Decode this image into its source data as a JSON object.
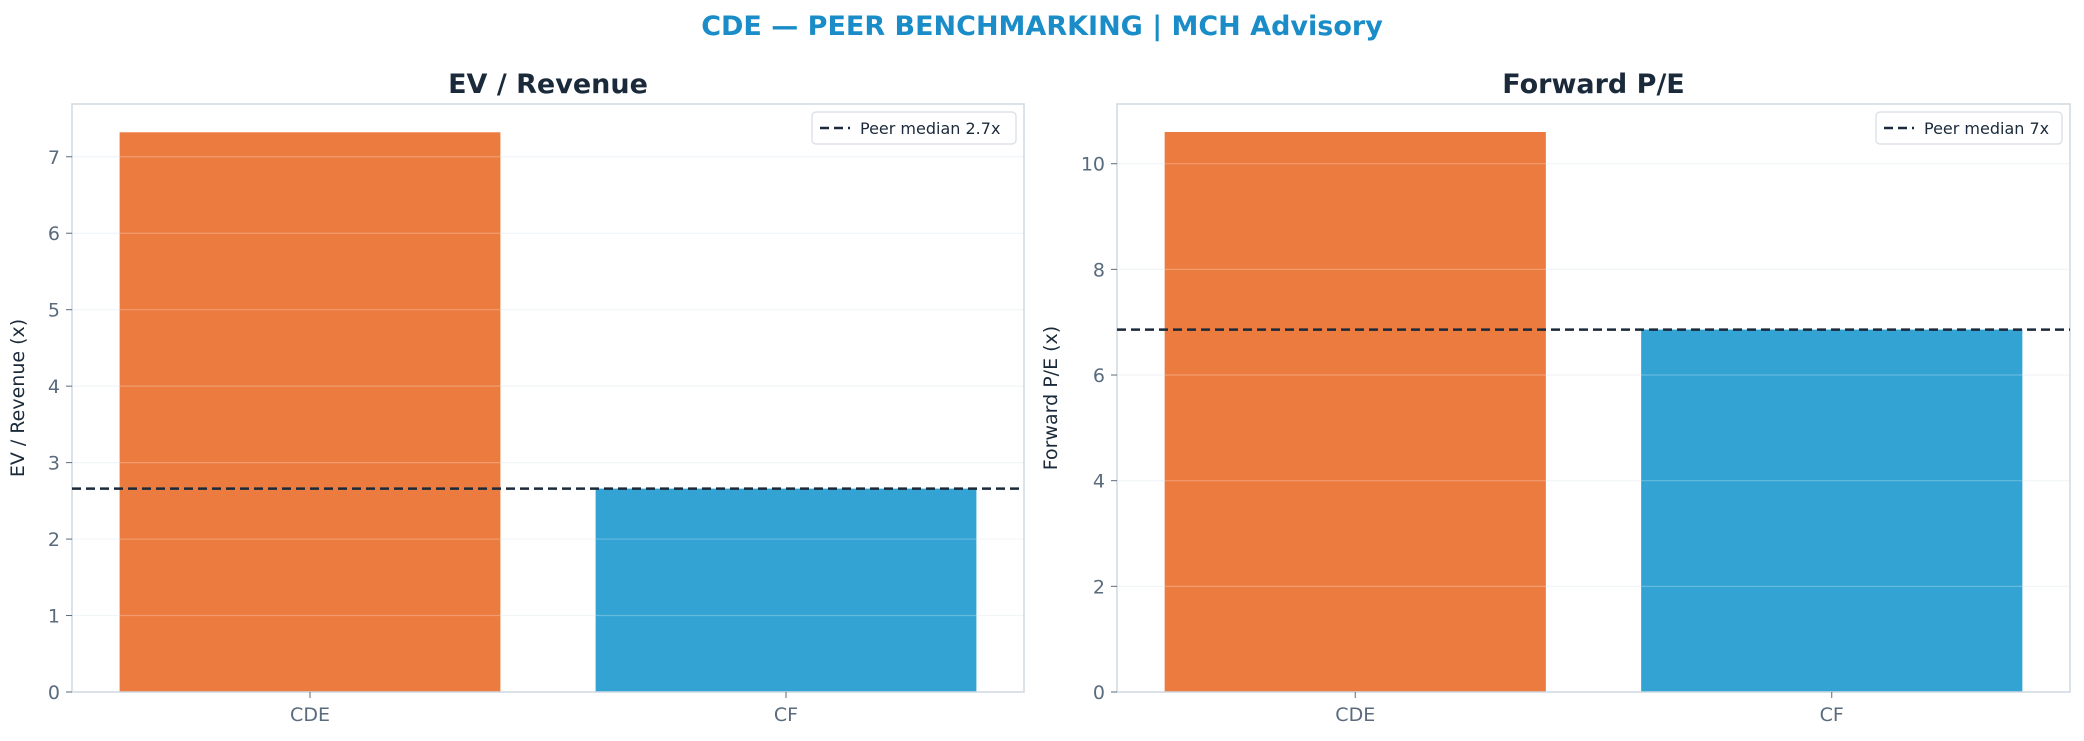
{
  "title": "CDE — PEER BENCHMARKING | MCH Advisory",
  "colors": {
    "title": "#1a8cc8",
    "highlight_bar": "#ec7b3f",
    "peer_bar": "#33a3d3",
    "median_line": "#1b2a3a",
    "axis": "#cfd8e0",
    "grid": "#eef2f5"
  },
  "chart_data": [
    {
      "type": "bar",
      "title": "EV / Revenue",
      "ylabel": "EV / Revenue (x)",
      "categories": [
        "CDE",
        "CF"
      ],
      "values": [
        7.32,
        2.66
      ],
      "ylim": [
        0,
        7.69
      ],
      "yticks": [
        0,
        1,
        2,
        3,
        4,
        5,
        6,
        7
      ],
      "grid": true,
      "reference_line": {
        "value": 2.66,
        "label": "Peer median 2.7x",
        "style": "dashed"
      },
      "legend_position": "top-right"
    },
    {
      "type": "bar",
      "title": "Forward P/E",
      "ylabel": "Forward P/E (x)",
      "categories": [
        "CDE",
        "CF"
      ],
      "values": [
        10.6,
        6.86
      ],
      "ylim": [
        0,
        11.13
      ],
      "yticks": [
        0,
        2,
        4,
        6,
        8,
        10
      ],
      "grid": true,
      "reference_line": {
        "value": 6.86,
        "label": "Peer median 7x",
        "style": "dashed"
      },
      "legend_position": "top-right"
    }
  ]
}
